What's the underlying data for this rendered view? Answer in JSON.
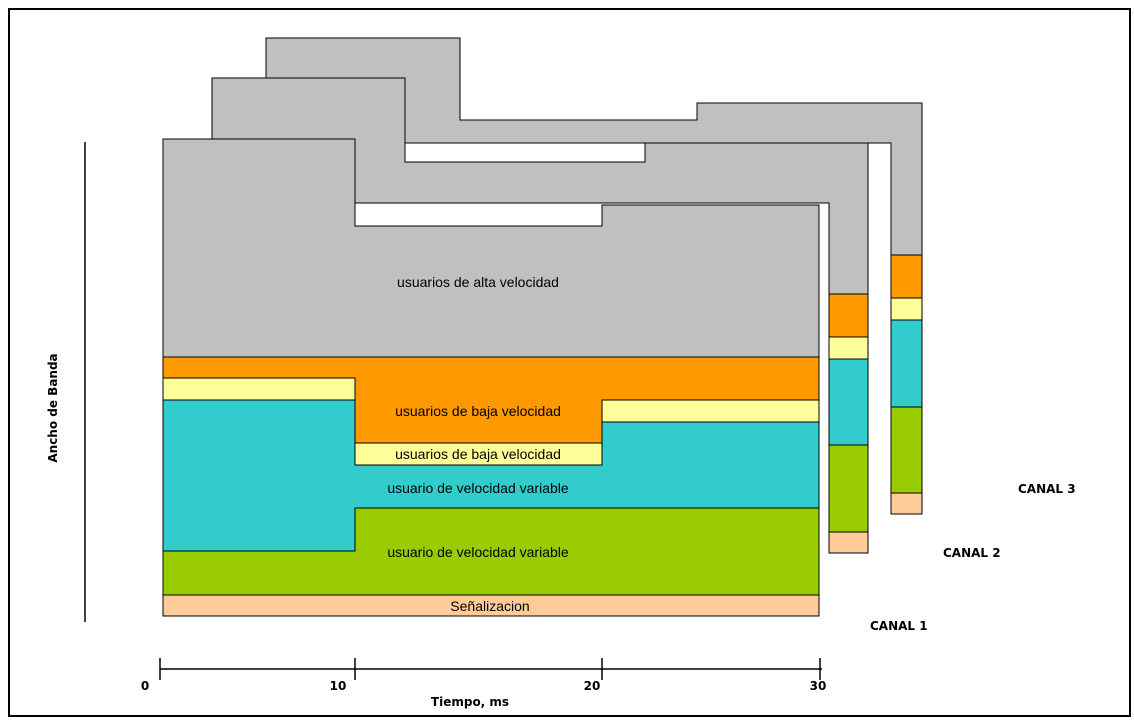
{
  "diagram": {
    "y_axis_label": "Ancho de Banda",
    "x_axis_label": "Tiempo, ms",
    "x_ticks": [
      "0",
      "10",
      "20",
      "30"
    ],
    "channels": [
      "CANAL 1",
      "CANAL 2",
      "CANAL 3"
    ],
    "regions": {
      "high_speed": "usuarios de alta velocidad",
      "low_speed_1": "usuarios de baja velocidad",
      "low_speed_2": "usuarios de baja velocidad",
      "variable_1": "usuario de velocidad variable",
      "variable_2": "usuario de velocidad variable",
      "signaling": "Señalizacion"
    },
    "colors": {
      "gray": "#c0c0c0",
      "orange": "#ff9900",
      "yellow": "#ffff99",
      "cyan": "#33cccc",
      "green": "#99cc00",
      "peach": "#ffcc99"
    }
  }
}
